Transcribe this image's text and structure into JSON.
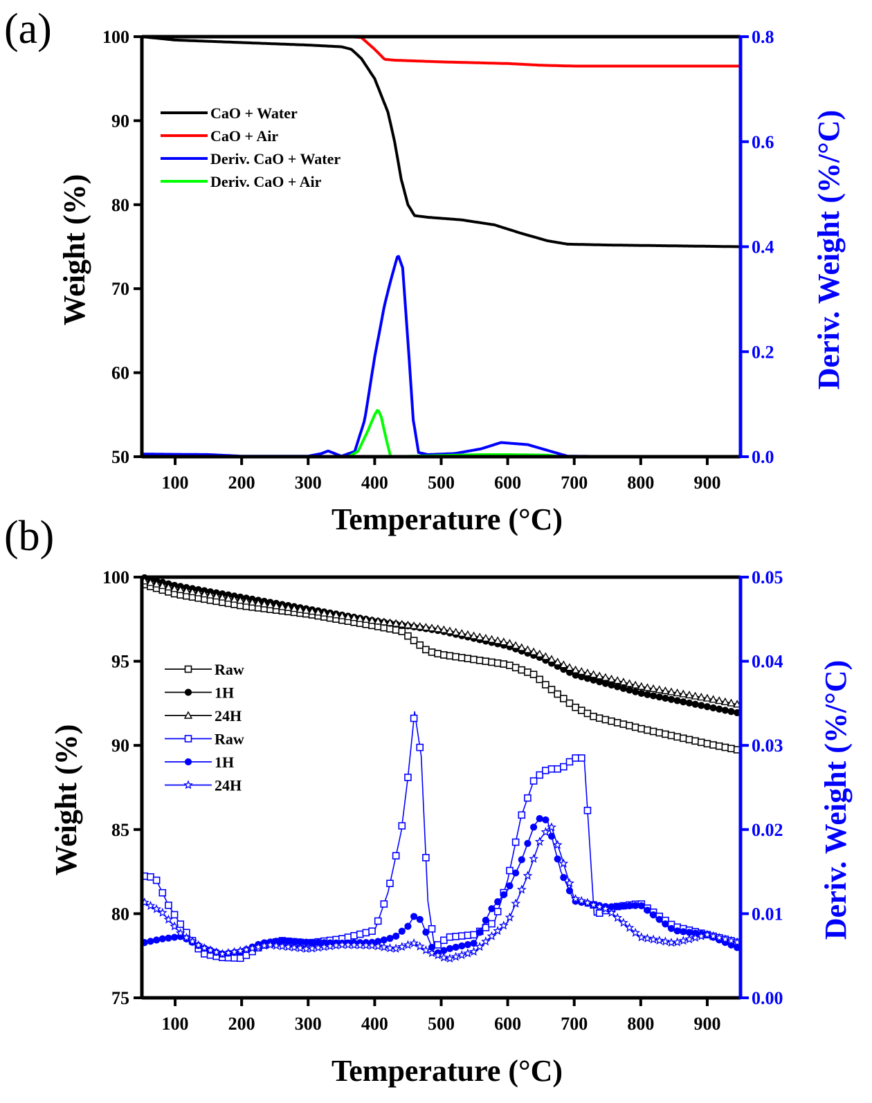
{
  "chart_data": [
    {
      "panel_label": "(a)",
      "type": "line",
      "xlabel": "Temperature (°C)",
      "ylabel": "Weight (%)",
      "y2label": "Deriv. Weight (%/°C)",
      "xlim": [
        50,
        950
      ],
      "ylim": [
        50,
        100
      ],
      "y2lim": [
        0,
        0.8
      ],
      "xticks": [
        "100",
        "200",
        "300",
        "400",
        "500",
        "600",
        "700",
        "800",
        "900"
      ],
      "yticks": [
        "50",
        "60",
        "70",
        "80",
        "90",
        "100"
      ],
      "y2ticks": [
        "0.0",
        "0.2",
        "0.4",
        "0.6",
        "0.8"
      ],
      "legend_placement": "upper-left",
      "colors": {
        "left_axis": "#000000",
        "right_axis": "#0000ff"
      },
      "series": [
        {
          "name": "CaO + Water",
          "axis": "left",
          "color": "#000000",
          "x": [
            50,
            100,
            200,
            300,
            350,
            365,
            380,
            400,
            420,
            430,
            440,
            450,
            460,
            480,
            530,
            580,
            620,
            660,
            690,
            750,
            850,
            950
          ],
          "y": [
            100,
            99.6,
            99.3,
            99.0,
            98.8,
            98.5,
            97.4,
            95,
            91,
            87.5,
            83,
            80,
            78.7,
            78.5,
            78.2,
            77.6,
            76.6,
            75.7,
            75.3,
            75.2,
            75.1,
            75.0
          ]
        },
        {
          "name": "CaO + Air",
          "axis": "left",
          "color": "#ff0000",
          "x": [
            50,
            360,
            380,
            400,
            415,
            430,
            500,
            600,
            650,
            700,
            800,
            950
          ],
          "y": [
            100,
            100,
            99.9,
            98.5,
            97.3,
            97.2,
            97.0,
            96.8,
            96.6,
            96.5,
            96.5,
            96.5
          ]
        },
        {
          "name": "Deriv. CaO + Water",
          "axis": "right",
          "color": "#0000ff",
          "x": [
            50,
            150,
            200,
            300,
            320,
            330,
            340,
            350,
            370,
            385,
            400,
            415,
            425,
            435,
            442,
            450,
            458,
            466,
            480,
            520,
            560,
            590,
            630,
            660,
            690,
            800
          ],
          "y": [
            0.005,
            0.004,
            0.001,
            0.001,
            0.006,
            0.011,
            0.006,
            0.001,
            0.01,
            0.07,
            0.19,
            0.29,
            0.34,
            0.385,
            0.36,
            0.22,
            0.07,
            0.008,
            0.004,
            0.006,
            0.015,
            0.027,
            0.023,
            0.012,
            0.001,
            0.0
          ]
        },
        {
          "name": "Deriv. CaO + Air",
          "axis": "right",
          "color": "#00ff00",
          "x": [
            360,
            375,
            390,
            400,
            405,
            410,
            418,
            424,
            560,
            600,
            660,
            680
          ],
          "y": [
            0.0,
            0.01,
            0.05,
            0.08,
            0.09,
            0.075,
            0.03,
            0.0,
            0.004,
            0.004,
            0.003,
            0.0
          ]
        }
      ]
    },
    {
      "panel_label": "(b)",
      "type": "line",
      "xlabel": "Temperature (°C)",
      "ylabel": "Weight (%)",
      "y2label": "Deriv. Weight (%/°C)",
      "xlim": [
        50,
        950
      ],
      "ylim": [
        75,
        100
      ],
      "y2lim": [
        0,
        0.05
      ],
      "xticks": [
        "100",
        "200",
        "300",
        "400",
        "500",
        "600",
        "700",
        "800",
        "900"
      ],
      "yticks": [
        "75",
        "80",
        "85",
        "90",
        "95",
        "100"
      ],
      "y2ticks": [
        "0.00",
        "0.01",
        "0.02",
        "0.03",
        "0.04",
        "0.05"
      ],
      "legend_placement": "upper-left",
      "colors": {
        "left_axis": "#000000",
        "right_axis": "#0000ff"
      },
      "series": [
        {
          "name": "Raw",
          "axis": "left",
          "color": "#000000",
          "marker": "open-square",
          "x": [
            50,
            100,
            200,
            300,
            400,
            440,
            460,
            480,
            500,
            550,
            600,
            640,
            660,
            700,
            730,
            800,
            900,
            950
          ],
          "y": [
            99.6,
            99.0,
            98.3,
            97.8,
            97.1,
            96.8,
            96.2,
            95.6,
            95.4,
            95.1,
            94.8,
            94.2,
            93.5,
            92.3,
            91.7,
            91.0,
            90.1,
            89.7
          ]
        },
        {
          "name": "1H",
          "axis": "left",
          "color": "#000000",
          "marker": "filled-circle",
          "x": [
            50,
            100,
            200,
            300,
            400,
            500,
            600,
            650,
            700,
            800,
            900,
            950
          ],
          "y": [
            100,
            99.5,
            98.8,
            98.1,
            97.4,
            96.8,
            95.9,
            95.2,
            94.2,
            93.1,
            92.3,
            91.9
          ]
        },
        {
          "name": "24H",
          "axis": "left",
          "color": "#000000",
          "marker": "open-triangle",
          "x": [
            50,
            100,
            200,
            300,
            400,
            500,
            600,
            650,
            700,
            800,
            900,
            950
          ],
          "y": [
            99.8,
            99.3,
            98.6,
            98.0,
            97.4,
            96.9,
            96.1,
            95.4,
            94.5,
            93.5,
            92.8,
            92.4
          ]
        },
        {
          "name": "Raw",
          "axis": "right",
          "color": "#0000ff",
          "marker": "open-square",
          "x": [
            50,
            70,
            90,
            110,
            140,
            170,
            200,
            230,
            260,
            300,
            350,
            400,
            420,
            440,
            450,
            460,
            470,
            480,
            490,
            510,
            550,
            580,
            600,
            620,
            640,
            660,
            680,
            700,
            715,
            730,
            760,
            800,
            850,
            900,
            950
          ],
          "y": [
            0.0145,
            0.0143,
            0.011,
            0.0085,
            0.0053,
            0.0048,
            0.0047,
            0.0062,
            0.0068,
            0.0065,
            0.007,
            0.008,
            0.0125,
            0.0198,
            0.0262,
            0.034,
            0.0287,
            0.0115,
            0.006,
            0.0072,
            0.0075,
            0.009,
            0.014,
            0.0215,
            0.026,
            0.0272,
            0.0272,
            0.0285,
            0.0285,
            0.0098,
            0.0108,
            0.0112,
            0.0085,
            0.0075,
            0.0065
          ]
        },
        {
          "name": "1H",
          "axis": "right",
          "color": "#0000ff",
          "marker": "filled-circle",
          "x": [
            50,
            80,
            110,
            140,
            170,
            200,
            230,
            260,
            300,
            350,
            400,
            430,
            450,
            460,
            470,
            490,
            510,
            550,
            575,
            600,
            620,
            640,
            650,
            660,
            680,
            700,
            750,
            800,
            850,
            900,
            950
          ],
          "y": [
            0.0065,
            0.007,
            0.0073,
            0.006,
            0.0052,
            0.0055,
            0.0065,
            0.0068,
            0.0066,
            0.0065,
            0.0066,
            0.0072,
            0.0085,
            0.0098,
            0.0092,
            0.0052,
            0.0058,
            0.0065,
            0.0105,
            0.0128,
            0.0162,
            0.0205,
            0.0215,
            0.021,
            0.015,
            0.0115,
            0.0108,
            0.011,
            0.008,
            0.0075,
            0.0058
          ]
        },
        {
          "name": "24H",
          "axis": "right",
          "color": "#0000ff",
          "marker": "open-star",
          "x": [
            50,
            80,
            110,
            140,
            170,
            200,
            240,
            300,
            350,
            400,
            430,
            460,
            480,
            510,
            550,
            600,
            630,
            650,
            665,
            680,
            700,
            750,
            800,
            850,
            900,
            950
          ],
          "y": [
            0.0115,
            0.0102,
            0.0075,
            0.006,
            0.0052,
            0.0056,
            0.0063,
            0.0058,
            0.0063,
            0.0062,
            0.0058,
            0.0065,
            0.0055,
            0.0046,
            0.0055,
            0.009,
            0.0145,
            0.019,
            0.0205,
            0.017,
            0.0118,
            0.0105,
            0.0072,
            0.0065,
            0.0075,
            0.0065
          ]
        }
      ]
    }
  ]
}
